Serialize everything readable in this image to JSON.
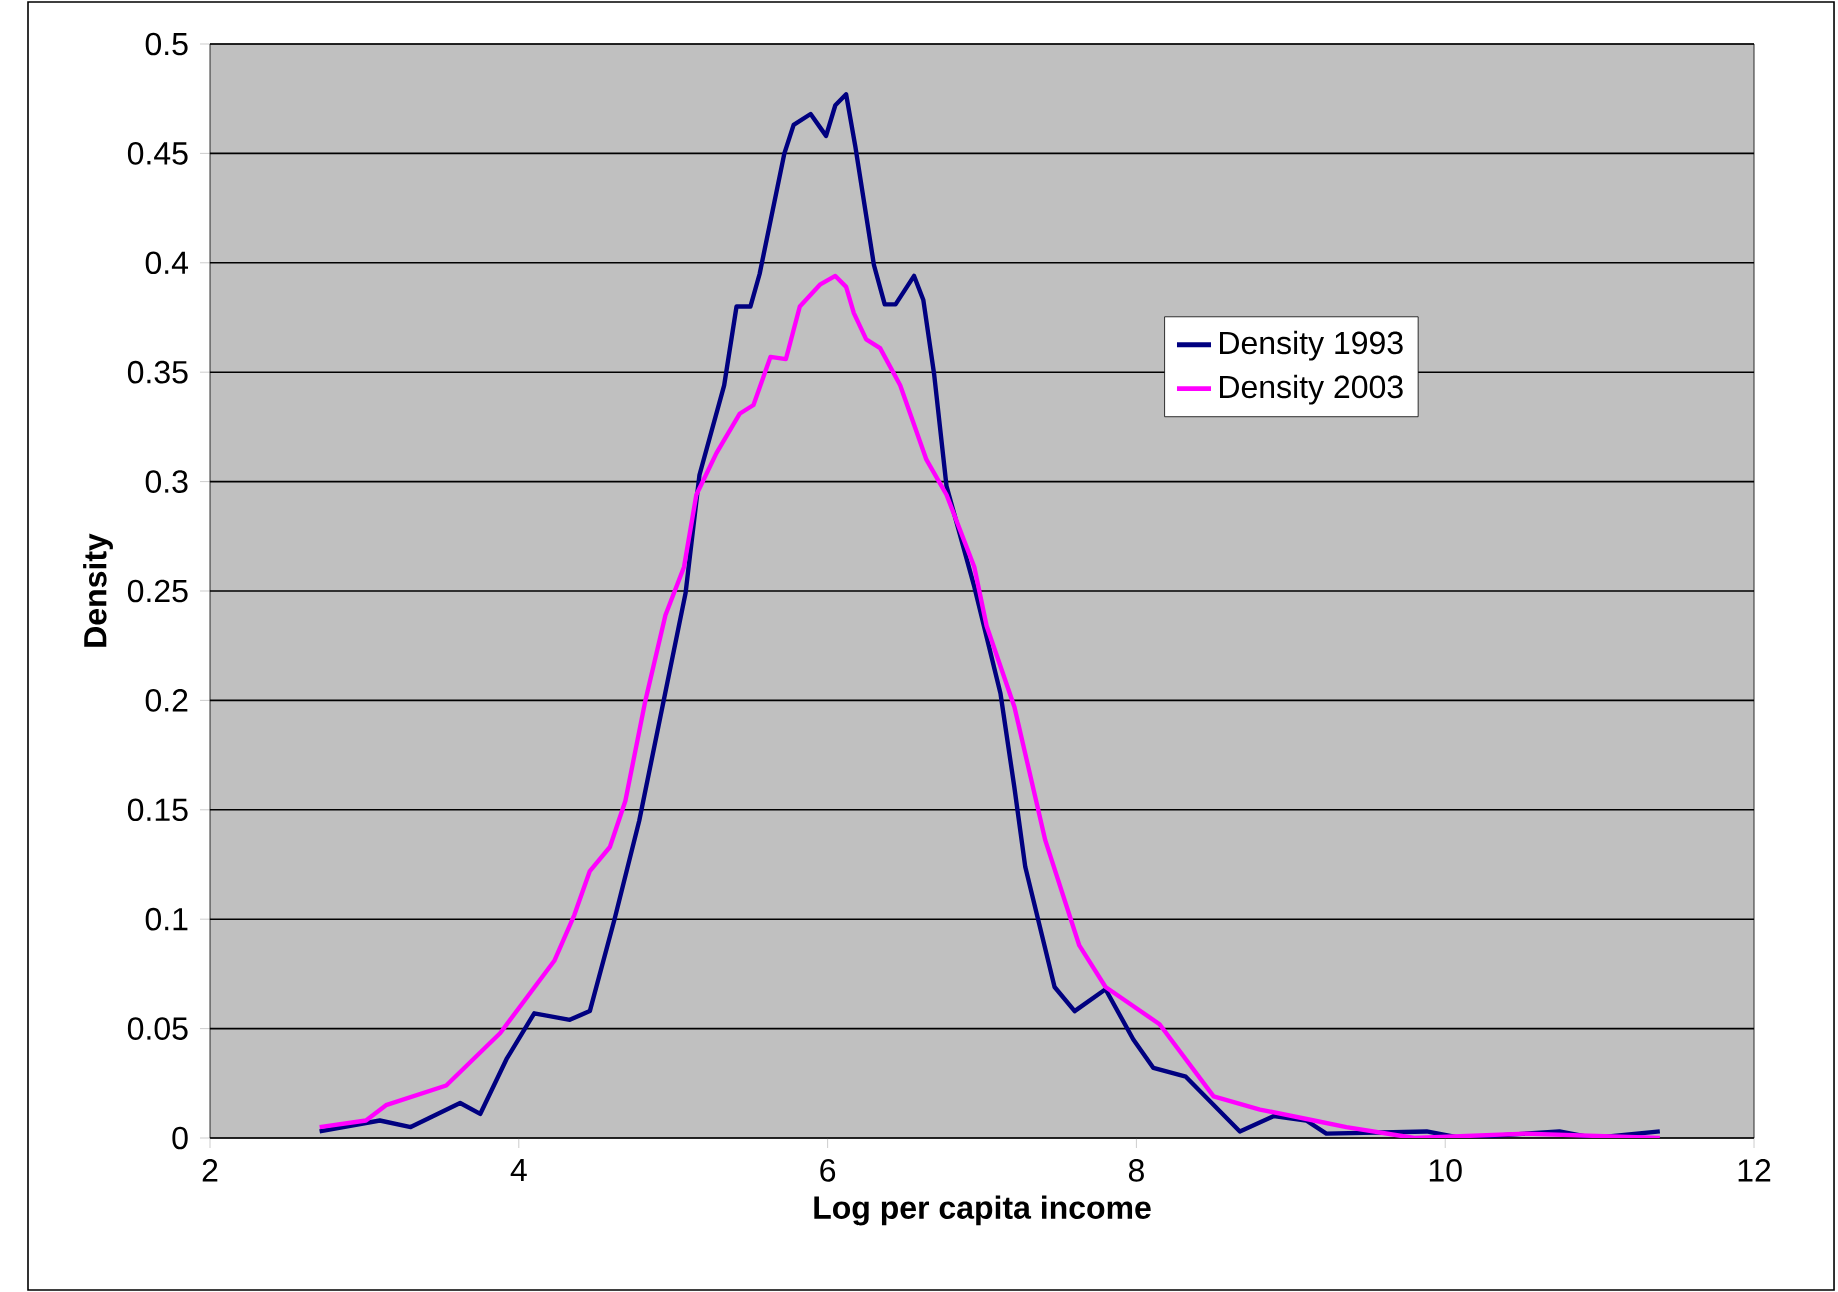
{
  "chart_data": {
    "type": "line",
    "xlabel": "Log per capita income",
    "ylabel": "Density",
    "xlim": [
      2,
      12
    ],
    "ylim": [
      0,
      0.5
    ],
    "xticks": [
      2,
      4,
      6,
      8,
      10,
      12
    ],
    "yticks": [
      0,
      0.05,
      0.1,
      0.15,
      0.2,
      0.25,
      0.3,
      0.35,
      0.4,
      0.45,
      0.5
    ],
    "grid": "y",
    "legend": "right",
    "line_style": "solid",
    "series": [
      {
        "name": "Density 1993",
        "color": "#000080",
        "x": [
          2.71,
          3.1,
          3.3,
          3.62,
          3.75,
          3.92,
          4.1,
          4.33,
          4.46,
          4.62,
          4.78,
          5.08,
          5.17,
          5.33,
          5.41,
          5.5,
          5.56,
          5.72,
          5.78,
          5.89,
          5.99,
          6.05,
          6.12,
          6.18,
          6.3,
          6.37,
          6.44,
          6.56,
          6.62,
          6.69,
          6.77,
          6.95,
          7.12,
          7.21,
          7.28,
          7.47,
          7.6,
          7.8,
          7.98,
          8.11,
          8.32,
          8.67,
          8.89,
          9.1,
          9.23,
          9.88,
          10.1,
          10.74,
          10.96,
          11.39
        ],
        "values": [
          0.003,
          0.008,
          0.005,
          0.016,
          0.011,
          0.036,
          0.057,
          0.054,
          0.058,
          0.1,
          0.145,
          0.249,
          0.303,
          0.344,
          0.38,
          0.38,
          0.395,
          0.45,
          0.463,
          0.468,
          0.458,
          0.472,
          0.477,
          0.453,
          0.399,
          0.381,
          0.381,
          0.394,
          0.383,
          0.349,
          0.298,
          0.252,
          0.203,
          0.16,
          0.124,
          0.069,
          0.058,
          0.068,
          0.045,
          0.032,
          0.028,
          0.003,
          0.01,
          0.008,
          0.002,
          0.003,
          0.0,
          0.003,
          0.0,
          0.003
        ]
      },
      {
        "name": "Density 2003",
        "color": "#ff00ff",
        "x": [
          2.71,
          3.01,
          3.14,
          3.53,
          3.88,
          4.23,
          4.36,
          4.46,
          4.59,
          4.69,
          4.82,
          4.95,
          5.07,
          5.15,
          5.28,
          5.43,
          5.52,
          5.63,
          5.73,
          5.82,
          5.95,
          6.05,
          6.12,
          6.17,
          6.25,
          6.34,
          6.47,
          6.64,
          6.77,
          6.95,
          7.03,
          7.21,
          7.41,
          7.63,
          7.8,
          8.15,
          8.5,
          8.8,
          9.15,
          9.36,
          9.8,
          10.52,
          11.39
        ],
        "values": [
          0.005,
          0.008,
          0.015,
          0.024,
          0.048,
          0.081,
          0.102,
          0.122,
          0.133,
          0.154,
          0.2,
          0.239,
          0.261,
          0.294,
          0.313,
          0.331,
          0.335,
          0.357,
          0.356,
          0.38,
          0.39,
          0.394,
          0.389,
          0.377,
          0.365,
          0.361,
          0.344,
          0.31,
          0.294,
          0.261,
          0.234,
          0.197,
          0.136,
          0.088,
          0.069,
          0.052,
          0.019,
          0.013,
          0.008,
          0.005,
          0.0,
          0.002,
          0.0
        ]
      }
    ]
  }
}
